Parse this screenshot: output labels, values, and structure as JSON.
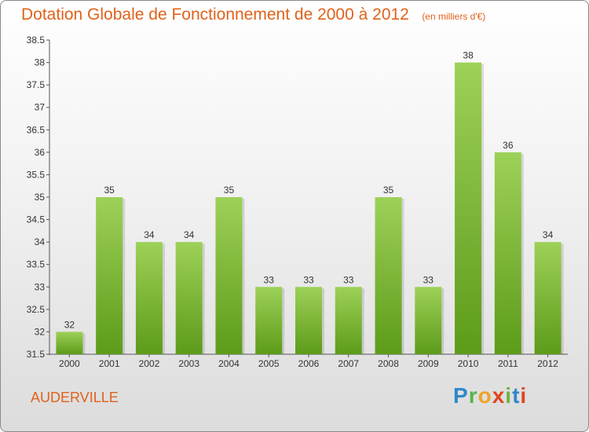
{
  "header": {
    "title": "Dotation Globale de Fonctionnement de 2000 à 2012",
    "unit": "(en milliers d'€)"
  },
  "footer": {
    "commune": "AUDERVILLE",
    "logo": "Proxiti"
  },
  "colors": {
    "title": "#e0621a",
    "bar_light": "#9dd158",
    "bar_dark": "#5d9b1a",
    "label": "#333333"
  },
  "chart_data": {
    "type": "bar",
    "title": "Dotation Globale de Fonctionnement de 2000 à 2012",
    "subtitle": "(en milliers d'€)",
    "categories": [
      "2000",
      "2001",
      "2002",
      "2003",
      "2004",
      "2005",
      "2006",
      "2007",
      "2008",
      "2009",
      "2010",
      "2011",
      "2012"
    ],
    "values": [
      32,
      35,
      34,
      34,
      35,
      33,
      33,
      33,
      35,
      33,
      38,
      36,
      34
    ],
    "data_labels": [
      "32",
      "35",
      "34",
      "34",
      "35",
      "33",
      "33",
      "33",
      "35",
      "33",
      "38",
      "36",
      "34"
    ],
    "yticks": [
      "31.5",
      "32",
      "32.5",
      "33",
      "33.5",
      "34",
      "34.5",
      "35",
      "35.5",
      "36",
      "36.5",
      "37",
      "37.5",
      "38",
      "38.5"
    ],
    "ylim": [
      31.5,
      38.5
    ],
    "xlabel": "",
    "ylabel": "",
    "grid": false,
    "legend": "none"
  }
}
